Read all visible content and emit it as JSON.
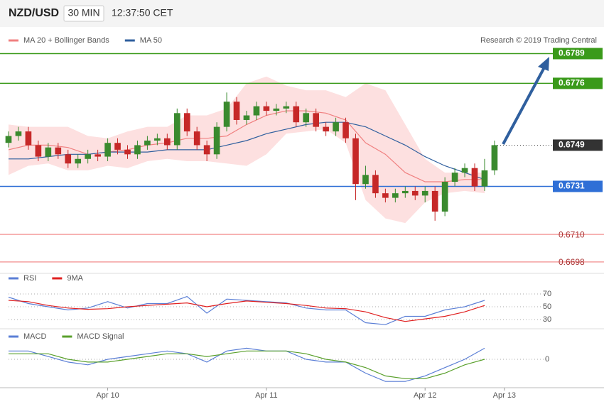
{
  "chart_data": [
    {
      "type": "candlestick",
      "title": "NZD/USD",
      "timeframe": "30 MIN",
      "time": "12:37:50 CET",
      "source": "Research © 2019 Trading Central",
      "up_color": "#3a8a2e",
      "down_color": "#c62828",
      "x": [
        0,
        1.5,
        3,
        4.5,
        6,
        7.5,
        9,
        10.5,
        12,
        13.5,
        15,
        16.5,
        18,
        19.5,
        21,
        22.5,
        24,
        25.5,
        27,
        28.5,
        30,
        31.5,
        33,
        34.5,
        36,
        37.5,
        39,
        40.5,
        42,
        43.5,
        45,
        46.5,
        48,
        49.5,
        51,
        52.5,
        54,
        55.5,
        57,
        58.5,
        60,
        61.5,
        63,
        64.5,
        66,
        67.5,
        69,
        70.5,
        72,
        73.5
      ],
      "open": [
        0.675,
        0.6753,
        0.6755,
        0.6749,
        0.6744,
        0.6748,
        0.6745,
        0.6741,
        0.6743,
        0.6745,
        0.6744,
        0.675,
        0.6747,
        0.6745,
        0.6749,
        0.6751,
        0.6752,
        0.6749,
        0.6763,
        0.6755,
        0.6749,
        0.6745,
        0.6757,
        0.6768,
        0.676,
        0.6762,
        0.6766,
        0.6764,
        0.6765,
        0.6766,
        0.6759,
        0.6763,
        0.6757,
        0.6755,
        0.6759,
        0.6752,
        0.6732,
        0.6736,
        0.6728,
        0.6726,
        0.6728,
        0.6729,
        0.6727,
        0.6729,
        0.672,
        0.6733,
        0.6737,
        0.6739,
        0.6731,
        0.6738
      ],
      "high": [
        0.6755,
        0.6757,
        0.6757,
        0.6751,
        0.675,
        0.675,
        0.6747,
        0.6745,
        0.6747,
        0.6747,
        0.6752,
        0.6752,
        0.6749,
        0.6751,
        0.6753,
        0.6754,
        0.6754,
        0.6765,
        0.6765,
        0.6757,
        0.6751,
        0.6759,
        0.6772,
        0.677,
        0.6764,
        0.6768,
        0.6768,
        0.6767,
        0.6768,
        0.6768,
        0.6765,
        0.6765,
        0.6759,
        0.6761,
        0.6761,
        0.6754,
        0.674,
        0.6738,
        0.673,
        0.673,
        0.6731,
        0.6731,
        0.6731,
        0.6731,
        0.6735,
        0.6739,
        0.6741,
        0.6741,
        0.6743,
        0.6751
      ],
      "low": [
        0.6748,
        0.6751,
        0.6747,
        0.6742,
        0.6742,
        0.6743,
        0.6739,
        0.6739,
        0.6741,
        0.6742,
        0.6742,
        0.6745,
        0.6743,
        0.6743,
        0.6747,
        0.6749,
        0.6747,
        0.6747,
        0.6753,
        0.6747,
        0.6742,
        0.6743,
        0.6755,
        0.6758,
        0.6758,
        0.676,
        0.6762,
        0.6762,
        0.6763,
        0.6757,
        0.6757,
        0.6755,
        0.6753,
        0.6753,
        0.675,
        0.6725,
        0.673,
        0.6726,
        0.6724,
        0.6724,
        0.6726,
        0.6725,
        0.6724,
        0.6716,
        0.6718,
        0.6731,
        0.6735,
        0.6729,
        0.6729,
        0.6736
      ],
      "close": [
        0.6753,
        0.6755,
        0.6749,
        0.6744,
        0.6748,
        0.6745,
        0.6741,
        0.6743,
        0.6745,
        0.6744,
        0.675,
        0.6747,
        0.6745,
        0.6749,
        0.6751,
        0.6752,
        0.6749,
        0.6763,
        0.6755,
        0.6749,
        0.6745,
        0.6757,
        0.6768,
        0.676,
        0.6762,
        0.6766,
        0.6764,
        0.6765,
        0.6766,
        0.6759,
        0.6763,
        0.6757,
        0.6755,
        0.6759,
        0.6752,
        0.6732,
        0.6736,
        0.6728,
        0.6726,
        0.6728,
        0.6729,
        0.6727,
        0.6729,
        0.672,
        0.6733,
        0.6737,
        0.6739,
        0.6731,
        0.6738,
        0.6749
      ],
      "overlay_x": [
        0,
        3,
        6,
        9,
        12,
        15,
        18,
        21,
        24,
        27,
        30,
        33,
        36,
        39,
        42,
        45,
        48,
        51,
        54,
        57,
        60,
        63,
        66,
        69,
        72
      ],
      "overlays": [
        {
          "name": "MA 20 + Bollinger Bands",
          "color": "#f08080",
          "band_color": "#fde0e0",
          "values": [
            0.6747,
            0.6749,
            0.6749,
            0.6748,
            0.6745,
            0.6746,
            0.6747,
            0.6749,
            0.675,
            0.6752,
            0.6752,
            0.6753,
            0.6758,
            0.6762,
            0.6764,
            0.6764,
            0.6763,
            0.676,
            0.675,
            0.6745,
            0.6737,
            0.6733,
            0.6733,
            0.6734,
            0.6734
          ],
          "upper": [
            0.6758,
            0.6757,
            0.6757,
            0.6757,
            0.6753,
            0.6752,
            0.6755,
            0.6757,
            0.6757,
            0.6762,
            0.6762,
            0.6765,
            0.6776,
            0.6779,
            0.6775,
            0.6773,
            0.6773,
            0.677,
            0.6776,
            0.6773,
            0.6758,
            0.6743,
            0.6737,
            0.6737,
            0.6737
          ],
          "lower": [
            0.6736,
            0.674,
            0.6741,
            0.6738,
            0.6738,
            0.674,
            0.6739,
            0.6742,
            0.6743,
            0.6742,
            0.6742,
            0.6741,
            0.674,
            0.6745,
            0.6754,
            0.6755,
            0.6756,
            0.675,
            0.6725,
            0.6717,
            0.6715,
            0.6724,
            0.6728,
            0.6729,
            0.6728
          ]
        },
        {
          "name": "MA 50",
          "color": "#2f5f9e",
          "values": [
            0.6743,
            0.6743,
            0.6744,
            0.6745,
            0.6745,
            0.6746,
            0.6746,
            0.6746,
            0.6747,
            0.6747,
            0.6747,
            0.6749,
            0.6751,
            0.6754,
            0.6756,
            0.6758,
            0.6759,
            0.6759,
            0.6757,
            0.6753,
            0.6749,
            0.6744,
            0.674,
            0.6737,
            0.6734
          ]
        }
      ],
      "levels": [
        {
          "value": 0.6789,
          "color": "#3a9a1a",
          "boxed": true,
          "line": "solid"
        },
        {
          "value": 0.6776,
          "color": "#3a9a1a",
          "boxed": true,
          "line": "solid"
        },
        {
          "value": 0.6749,
          "color": "#333333",
          "boxed": true,
          "line": "dotted"
        },
        {
          "value": 0.6731,
          "color": "#2f6fd6",
          "boxed": true,
          "line": "solid"
        },
        {
          "value": 0.671,
          "label": "0.6710",
          "color": "#f4a0a0",
          "boxed": false,
          "line": "solid"
        },
        {
          "value": 0.6698,
          "color": "#f4a0a0",
          "boxed": false,
          "line": "solid"
        }
      ],
      "xlim": [
        0,
        82
      ],
      "ylim": [
        0.6693,
        0.68
      ],
      "xticks": [
        {
          "value": 15,
          "label": "Apr 10"
        },
        {
          "value": 39,
          "label": "Apr 11"
        },
        {
          "value": 63,
          "label": "Apr 12"
        },
        {
          "value": 75,
          "label": "Apr 13"
        }
      ]
    },
    {
      "type": "line",
      "x": [
        0,
        3,
        6,
        9,
        12,
        15,
        18,
        21,
        24,
        27,
        30,
        33,
        36,
        39,
        42,
        45,
        48,
        51,
        54,
        57,
        60,
        63,
        66,
        69,
        72
      ],
      "xlim": [
        0,
        82
      ],
      "series": [
        {
          "name": "RSI",
          "color": "#5b7fd6",
          "values": [
            65,
            55,
            50,
            45,
            48,
            58,
            48,
            55,
            55,
            66,
            40,
            62,
            60,
            58,
            56,
            48,
            45,
            45,
            25,
            22,
            35,
            35,
            45,
            50,
            60
          ]
        },
        {
          "name": "9MA",
          "color": "#e02020",
          "values": [
            60,
            58,
            52,
            48,
            46,
            47,
            50,
            52,
            54,
            56,
            50,
            55,
            59,
            57,
            55,
            52,
            48,
            47,
            42,
            33,
            27,
            31,
            35,
            42,
            52
          ]
        }
      ],
      "ylim": [
        20,
        90
      ],
      "yticks": [
        30,
        50,
        70
      ]
    },
    {
      "type": "line",
      "x": [
        0,
        3,
        6,
        9,
        12,
        15,
        18,
        21,
        24,
        27,
        30,
        33,
        36,
        39,
        42,
        45,
        48,
        51,
        54,
        57,
        60,
        63,
        66,
        69,
        72
      ],
      "xlim": [
        0,
        82
      ],
      "series": [
        {
          "name": "MACD",
          "color": "#5b7fd6",
          "values": [
            0.0003,
            0.0003,
            0.0001,
            -0.0001,
            -0.0002,
            0,
            0.0001,
            0.0002,
            0.0003,
            0.0002,
            -0.0001,
            0.0003,
            0.0004,
            0.0003,
            0.0003,
            0,
            -0.0001,
            -0.0001,
            -0.0005,
            -0.0008,
            -0.0008,
            -0.0006,
            -0.0003,
            0,
            0.0004
          ]
        },
        {
          "name": "MACD Signal",
          "color": "#5aa02c",
          "values": [
            0.0002,
            0.0002,
            0.0002,
            0,
            -0.0001,
            -0.0001,
            0,
            0.0001,
            0.0002,
            0.0002,
            0.0001,
            0.0002,
            0.0003,
            0.0003,
            0.0003,
            0.0002,
            0,
            -0.0001,
            -0.0003,
            -0.0006,
            -0.0007,
            -0.0007,
            -0.0005,
            -0.0002,
            0
          ]
        }
      ],
      "ylim": [
        -0.001,
        0.001
      ],
      "yticks": [
        0
      ]
    }
  ]
}
